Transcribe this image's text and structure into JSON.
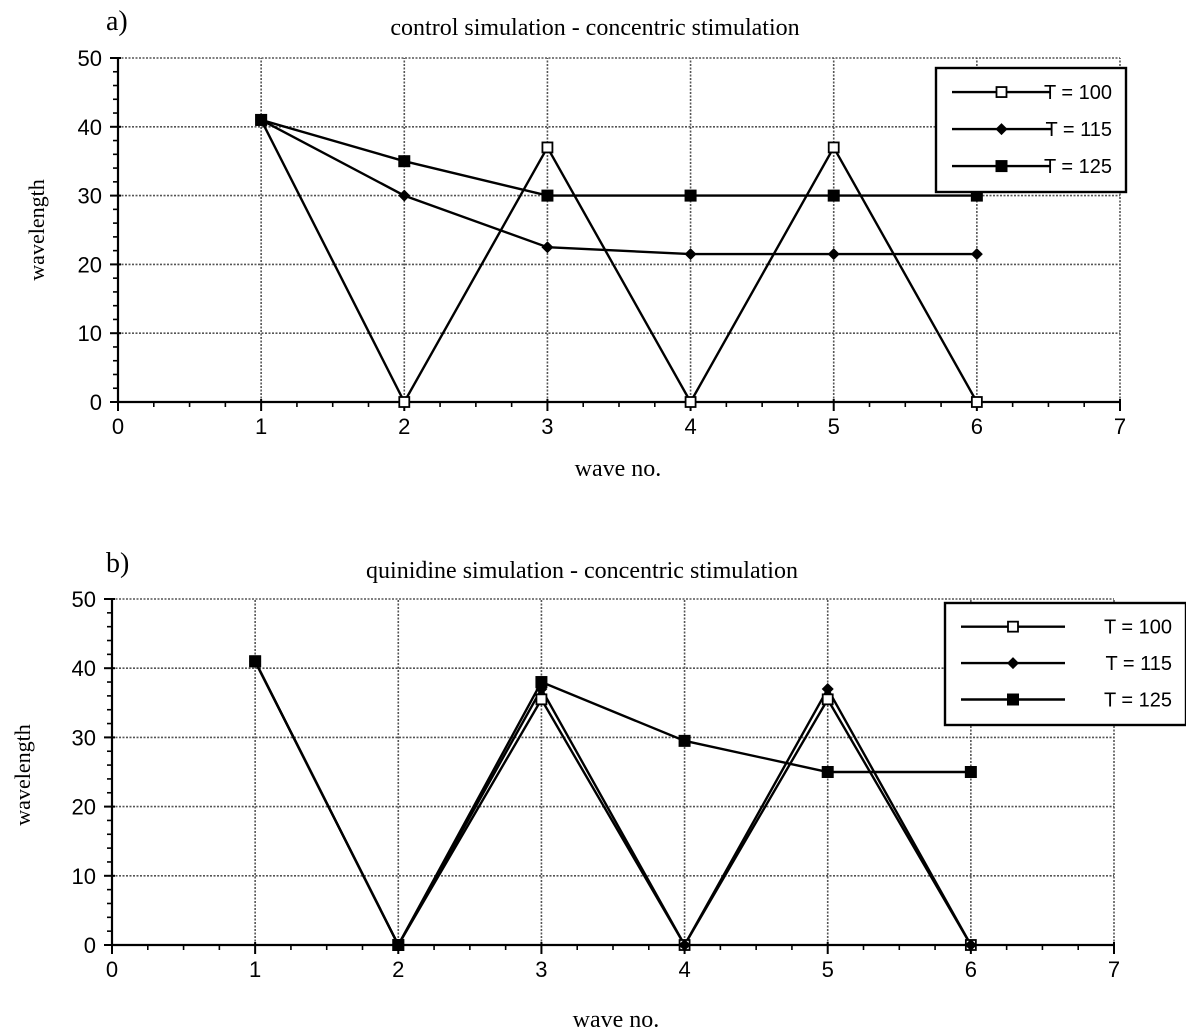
{
  "chart_data": [
    {
      "type": "line",
      "panel_label": "a)",
      "title": "control simulation - concentric stimulation",
      "xlabel": "wave no.",
      "ylabel": "wavelength",
      "xlim": [
        0,
        7
      ],
      "ylim": [
        0,
        50
      ],
      "xticks": [
        "0",
        "1",
        "2",
        "3",
        "4",
        "5",
        "6",
        "7"
      ],
      "yticks": [
        "0",
        "10",
        "20",
        "30",
        "40",
        "50"
      ],
      "grid": true,
      "legend_position": "top-right",
      "x": [
        1,
        2,
        3,
        4,
        5,
        6
      ],
      "series": [
        {
          "name": "T = 100",
          "marker": "open-square",
          "values": [
            41,
            0,
            37,
            0,
            37,
            0
          ]
        },
        {
          "name": "T = 115",
          "marker": "filled-diamond",
          "values": [
            41,
            30,
            22.5,
            21.5,
            21.5,
            21.5
          ]
        },
        {
          "name": "T = 125",
          "marker": "filled-square",
          "values": [
            41,
            35,
            30,
            30,
            30,
            30
          ]
        }
      ]
    },
    {
      "type": "line",
      "panel_label": "b)",
      "title": "quinidine simulation - concentric stimulation",
      "xlabel": "wave no.",
      "ylabel": "wavelength",
      "xlim": [
        0,
        7
      ],
      "ylim": [
        0,
        50
      ],
      "xticks": [
        "0",
        "1",
        "2",
        "3",
        "4",
        "5",
        "6",
        "7"
      ],
      "yticks": [
        "0",
        "10",
        "20",
        "30",
        "40",
        "50"
      ],
      "grid": true,
      "legend_position": "top-right",
      "x": [
        1,
        2,
        3,
        4,
        5,
        6
      ],
      "series": [
        {
          "name": "T = 100",
          "marker": "open-square",
          "values": [
            41,
            0,
            35.5,
            0,
            35.5,
            0
          ]
        },
        {
          "name": "T = 115",
          "marker": "filled-diamond",
          "values": [
            41,
            0,
            37,
            0,
            37,
            0
          ]
        },
        {
          "name": "T = 125",
          "marker": "filled-square",
          "values": [
            41,
            0,
            38,
            29.5,
            25,
            25
          ]
        }
      ]
    }
  ]
}
